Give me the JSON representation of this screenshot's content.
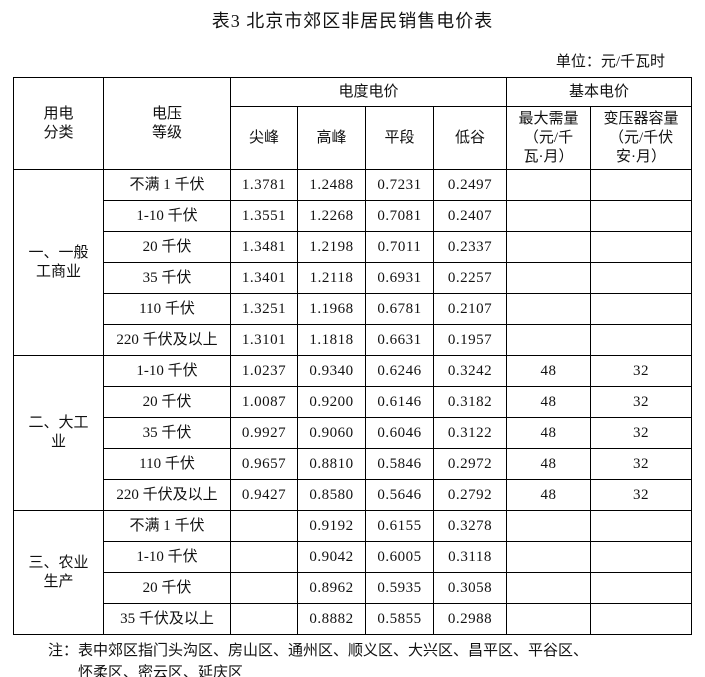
{
  "page": {
    "title": "表3 北京市郊区非居民销售电价表",
    "unit_label": "单位：元/千瓦时",
    "note": "注：表中郊区指门头沟区、房山区、通州区、顺义区、大兴区、昌平区、平谷区、\n怀柔区、密云区、延庆区"
  },
  "table": {
    "header": {
      "usage_category": "用电\n分类",
      "voltage_level": "电压\n等级",
      "energy_price_group": "电度电价",
      "basic_price_group": "基本电价",
      "sharp_peak": "尖峰",
      "peak": "高峰",
      "flat": "平段",
      "valley": "低谷",
      "max_demand": "最大需量\n（元/千\n瓦·月）",
      "transformer_capacity": "变压器容量\n（元/千伏\n安·月）"
    },
    "sections": [
      {
        "category": "一、一般\n工商业",
        "rows": [
          {
            "voltage": "不满 1 千伏",
            "values": [
              "1.3781",
              "1.2488",
              "0.7231",
              "0.2497",
              "",
              ""
            ]
          },
          {
            "voltage": "1-10 千伏",
            "values": [
              "1.3551",
              "1.2268",
              "0.7081",
              "0.2407",
              "",
              ""
            ]
          },
          {
            "voltage": "20 千伏",
            "values": [
              "1.3481",
              "1.2198",
              "0.7011",
              "0.2337",
              "",
              ""
            ]
          },
          {
            "voltage": "35 千伏",
            "values": [
              "1.3401",
              "1.2118",
              "0.6931",
              "0.2257",
              "",
              ""
            ]
          },
          {
            "voltage": "110 千伏",
            "values": [
              "1.3251",
              "1.1968",
              "0.6781",
              "0.2107",
              "",
              ""
            ]
          },
          {
            "voltage": "220 千伏及以上",
            "values": [
              "1.3101",
              "1.1818",
              "0.6631",
              "0.1957",
              "",
              ""
            ]
          }
        ]
      },
      {
        "category": "二、大工\n业",
        "rows": [
          {
            "voltage": "1-10 千伏",
            "values": [
              "1.0237",
              "0.9340",
              "0.6246",
              "0.3242",
              "48",
              "32"
            ]
          },
          {
            "voltage": "20 千伏",
            "values": [
              "1.0087",
              "0.9200",
              "0.6146",
              "0.3182",
              "48",
              "32"
            ]
          },
          {
            "voltage": "35 千伏",
            "values": [
              "0.9927",
              "0.9060",
              "0.6046",
              "0.3122",
              "48",
              "32"
            ]
          },
          {
            "voltage": "110 千伏",
            "values": [
              "0.9657",
              "0.8810",
              "0.5846",
              "0.2972",
              "48",
              "32"
            ]
          },
          {
            "voltage": "220 千伏及以上",
            "values": [
              "0.9427",
              "0.8580",
              "0.5646",
              "0.2792",
              "48",
              "32"
            ]
          }
        ]
      },
      {
        "category": "三、农业\n生产",
        "rows": [
          {
            "voltage": "不满 1 千伏",
            "values": [
              "",
              "0.9192",
              "0.6155",
              "0.3278",
              "",
              ""
            ]
          },
          {
            "voltage": "1-10 千伏",
            "values": [
              "",
              "0.9042",
              "0.6005",
              "0.3118",
              "",
              ""
            ]
          },
          {
            "voltage": "20 千伏",
            "values": [
              "",
              "0.8962",
              "0.5935",
              "0.3058",
              "",
              ""
            ]
          },
          {
            "voltage": "35 千伏及以上",
            "values": [
              "",
              "0.8882",
              "0.5855",
              "0.2988",
              "",
              ""
            ]
          }
        ]
      }
    ]
  }
}
